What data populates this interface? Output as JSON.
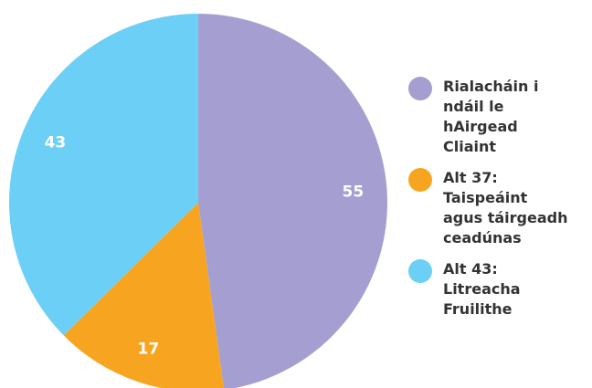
{
  "chart_data": {
    "type": "pie",
    "categories": [
      "Rialacháin i ndáil le hAirgead Cliaint",
      "Alt 37: Taispeáint agus táirgeadh ceadúnas",
      "Alt 43: Litreacha Fruilithe"
    ],
    "values": [
      55,
      17,
      43
    ],
    "colors": [
      "#a49fd0",
      "#f7a520",
      "#6ccff6"
    ]
  }
}
